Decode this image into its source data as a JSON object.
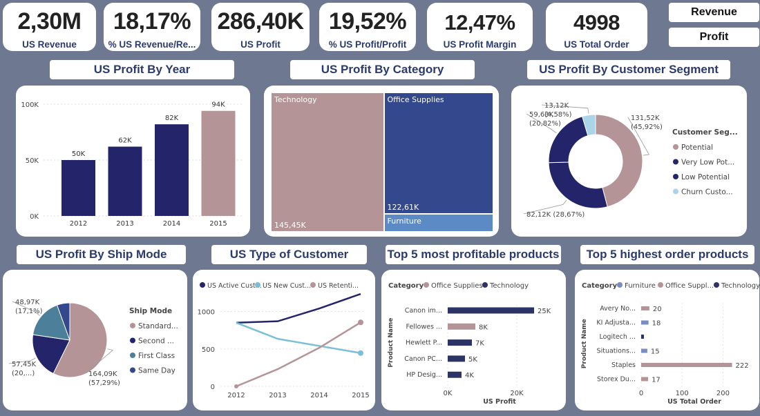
{
  "kpis": [
    {
      "value": "2,30M",
      "label": "US Revenue"
    },
    {
      "value": "18,17%",
      "label": "% US Revenue/Re..."
    },
    {
      "value": "286,40K",
      "label": "US Profit"
    },
    {
      "value": "19,52%",
      "label": "% US Profit/Profit"
    },
    {
      "value": "12,47%",
      "label": "US Profit Margin"
    },
    {
      "value": "4998",
      "label": "US Total Order"
    }
  ],
  "buttons": {
    "revenue": "Revenue",
    "profit": "Profit"
  },
  "titles": {
    "by_year": "US Profit By Year",
    "by_category": "US Profit By Category",
    "by_segment": "US Profit By Customer Segment",
    "by_ship_mode": "US Profit By Ship Mode",
    "customer_type": "US Type of Customer",
    "top_profitable": "Top 5 most profitable products",
    "top_orders": "Top 5 highest order products"
  },
  "colors": {
    "navy": "#23246a",
    "mauve": "#b59498",
    "blue": "#34488e",
    "light_blue": "#5b8ac4",
    "teal": "#4b7f9a",
    "sky": "#a9d5e6",
    "slate": "#7b8cc2"
  },
  "chart_data": [
    {
      "id": "profit_by_year",
      "type": "bar",
      "categories": [
        "2012",
        "2013",
        "2014",
        "2015"
      ],
      "values": [
        50,
        62,
        82,
        94
      ],
      "data_labels": [
        "50K",
        "62K",
        "82K",
        "94K"
      ],
      "y_ticks": [
        "0K",
        "50K",
        "100K"
      ],
      "ylim": [
        0,
        100
      ],
      "grid": true
    },
    {
      "id": "profit_by_category",
      "type": "treemap",
      "categories": [
        "Technology",
        "Office Supplies",
        "Furniture"
      ],
      "values": [
        145.45,
        122.61,
        18.34
      ],
      "data_labels": [
        "145,45K",
        "122,61K",
        ""
      ]
    },
    {
      "id": "profit_by_segment",
      "type": "pie",
      "legend_title": "Customer Seg...",
      "legend": [
        "Potential",
        "Very Low Pot...",
        "Low Potential",
        "Churn Custo..."
      ],
      "values": [
        131.52,
        82.12,
        59.63,
        13.12
      ],
      "percents": [
        45.92,
        28.67,
        20.82,
        4.58
      ],
      "labels": [
        [
          "131,52K",
          "(45,92%)"
        ],
        [
          "82,12K (28,67%)"
        ],
        [
          "59,63K",
          "(20,82%)"
        ],
        [
          "13,12K",
          "(4,58%)"
        ]
      ],
      "legend_position": "right"
    },
    {
      "id": "profit_by_ship_mode",
      "type": "pie",
      "legend_title": "Ship Mode",
      "legend": [
        "Standard...",
        "Second ...",
        "First Class",
        "Same Day"
      ],
      "values": [
        164.09,
        57.45,
        48.97,
        15.89
      ],
      "percents": [
        57.29,
        20.06,
        17.1,
        5.55
      ],
      "labels": [
        [
          "164,09K",
          "(57,29%)"
        ],
        [
          "57,45K",
          "(20,...)"
        ],
        [
          "48,97K",
          "(17,1%)"
        ],
        []
      ],
      "legend_position": "right"
    },
    {
      "id": "customer_type",
      "type": "line",
      "x": [
        "2012",
        "2013",
        "2014",
        "2015"
      ],
      "series": [
        {
          "name": "US Active Cust...",
          "values": [
            850,
            870,
            1040,
            1235
          ]
        },
        {
          "name": "US New Cust...",
          "values": [
            850,
            635,
            540,
            445
          ]
        },
        {
          "name": "US Retenti...",
          "values": [
            0,
            230,
            515,
            855
          ]
        }
      ],
      "y_ticks": [
        "0",
        "500",
        "1000"
      ],
      "ylim": [
        0,
        1300
      ],
      "legend_position": "top"
    },
    {
      "id": "top_profitable",
      "type": "bar",
      "orientation": "horizontal",
      "legend_title": "Category",
      "legend": [
        "Office Supplies",
        "Technology"
      ],
      "categories": [
        "Canon im...",
        "Fellowes ...",
        "Hewlett P...",
        "Canon PC...",
        "HP Desig..."
      ],
      "values": [
        25,
        8,
        7,
        5,
        4
      ],
      "series_index": [
        1,
        0,
        1,
        1,
        1
      ],
      "data_labels": [
        "25K",
        "8K",
        "7K",
        "5K",
        "4K"
      ],
      "x_ticks": [
        "0K",
        "20K"
      ],
      "xlim": [
        0,
        30
      ],
      "xlabel": "US Profit",
      "ylabel": "Product Name"
    },
    {
      "id": "top_orders",
      "type": "bar",
      "orientation": "horizontal",
      "legend_title": "Category",
      "legend": [
        "Furniture",
        "Office Suppl...",
        "Technology"
      ],
      "categories": [
        "Avery No...",
        "KI Adjusta...",
        "Logitech ...",
        "Situations...",
        "Staples",
        "Storex Du..."
      ],
      "values": [
        20,
        18,
        6,
        15,
        222,
        17
      ],
      "series_index": [
        1,
        0,
        2,
        0,
        1,
        1
      ],
      "data_labels": [
        "20",
        "18",
        "",
        "15",
        "222",
        "17"
      ],
      "x_ticks": [
        "0",
        "100",
        "200"
      ],
      "xlim": [
        0,
        260
      ],
      "xlabel": "US Total Order",
      "ylabel": "Product Name"
    }
  ]
}
